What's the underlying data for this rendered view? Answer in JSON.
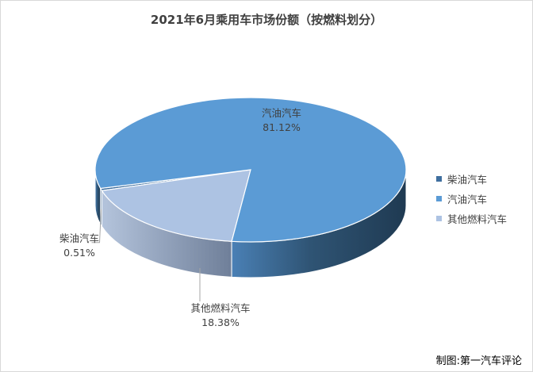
{
  "chart_data": {
    "type": "pie",
    "title": "2021年6月乘用车市场份额（按燃料划分）",
    "slices": [
      {
        "name": "柴油汽车",
        "value": 0.51,
        "label": "0.51%",
        "color": "#3f6f9f"
      },
      {
        "name": "汽油汽车",
        "value": 81.12,
        "label": "81.12%",
        "color": "#5b9bd5"
      },
      {
        "name": "其他燃料汽车",
        "value": 18.38,
        "label": "18.38%",
        "color": "#adc3e3"
      }
    ],
    "legend": {
      "position": "right",
      "items": [
        "柴油汽车",
        "汽油汽车",
        "其他燃料汽车"
      ]
    }
  },
  "credit": "制图:第一汽车评论"
}
